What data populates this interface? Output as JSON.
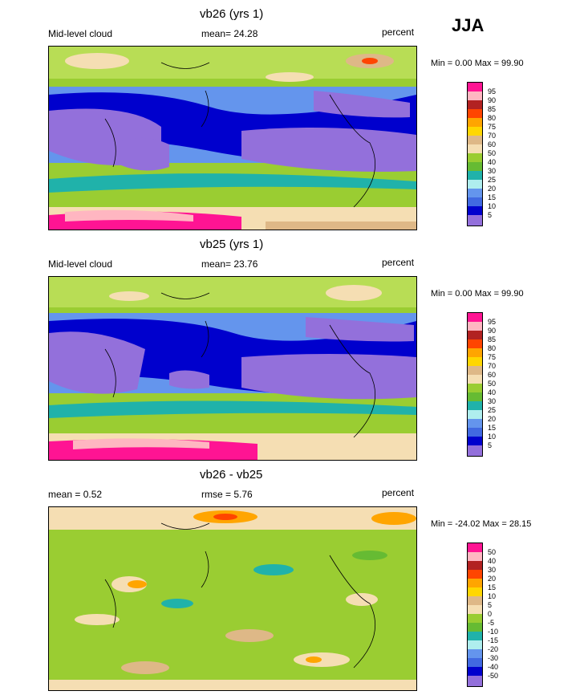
{
  "season": "JJA",
  "panels": [
    {
      "title": "vb26 (yrs 1)",
      "left_label": "Mid-level cloud",
      "mean_text": "mean=  24.28",
      "units": "percent",
      "minmax": "Min =   0.00 Max =  99.90",
      "legend": {
        "labels": [
          "95",
          "90",
          "85",
          "80",
          "75",
          "70",
          "60",
          "50",
          "40",
          "30",
          "25",
          "20",
          "15",
          "10",
          "5"
        ],
        "colors": [
          "#ff1493",
          "#ffb6c1",
          "#b22222",
          "#ff4500",
          "#ffa500",
          "#ffd700",
          "#deb887",
          "#f5deb3",
          "#9acd32",
          "#66bb33",
          "#20b2aa",
          "#afeeee",
          "#6495ed",
          "#4169e1",
          "#0000cd",
          "#9370db"
        ]
      }
    },
    {
      "title": "vb25 (yrs 1)",
      "left_label": "Mid-level cloud",
      "mean_text": "mean=  23.76",
      "units": "percent",
      "minmax": "Min =   0.00 Max =  99.90",
      "legend": {
        "labels": [
          "95",
          "90",
          "85",
          "80",
          "75",
          "70",
          "60",
          "50",
          "40",
          "30",
          "25",
          "20",
          "15",
          "10",
          "5"
        ],
        "colors": [
          "#ff1493",
          "#ffb6c1",
          "#b22222",
          "#ff4500",
          "#ffa500",
          "#ffd700",
          "#deb887",
          "#f5deb3",
          "#9acd32",
          "#66bb33",
          "#20b2aa",
          "#afeeee",
          "#6495ed",
          "#4169e1",
          "#0000cd",
          "#9370db"
        ]
      }
    },
    {
      "title": "vb26 - vb25",
      "left_label": "mean =   0.52",
      "mean_text": "rmse =   5.76",
      "units": "percent",
      "minmax": "Min = -24.02 Max =  28.15",
      "legend": {
        "labels": [
          "50",
          "40",
          "30",
          "20",
          "15",
          "10",
          "5",
          "0",
          "-5",
          "-10",
          "-15",
          "-20",
          "-30",
          "-40",
          "-50"
        ],
        "colors": [
          "#ff1493",
          "#ffb6c1",
          "#b22222",
          "#ff4500",
          "#ffa500",
          "#ffd700",
          "#deb887",
          "#f5deb3",
          "#9acd32",
          "#66bb33",
          "#20b2aa",
          "#afeeee",
          "#6495ed",
          "#4169e1",
          "#0000cd",
          "#9370db"
        ]
      }
    }
  ]
}
